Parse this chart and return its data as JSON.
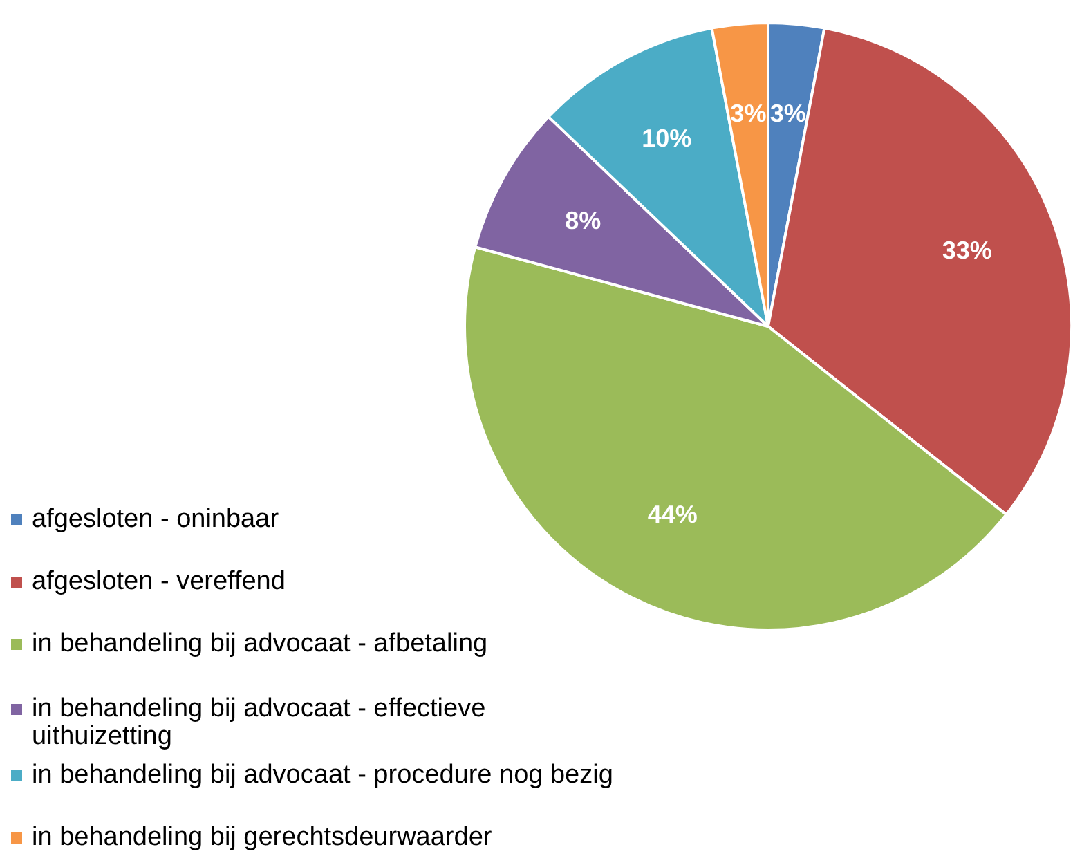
{
  "chart_data": {
    "type": "pie",
    "categories": [
      "afgesloten - oninbaar",
      "afgesloten - vereffend",
      "in behandeling bij advocaat - afbetaling",
      "in behandeling bij advocaat - effectieve uithuizetting",
      "in behandeling bij advocaat - procedure nog bezig",
      "in behandeling bij gerechtsdeurwaarder"
    ],
    "values": [
      3,
      33,
      44,
      8,
      10,
      3
    ],
    "colors": [
      "#4f81bd",
      "#c0504d",
      "#9bbb59",
      "#8064a2",
      "#4bacc6",
      "#f79646"
    ],
    "value_labels": [
      "3%",
      "33%",
      "44%",
      "8%",
      "10%",
      "3%"
    ],
    "legend": "bottom left"
  }
}
